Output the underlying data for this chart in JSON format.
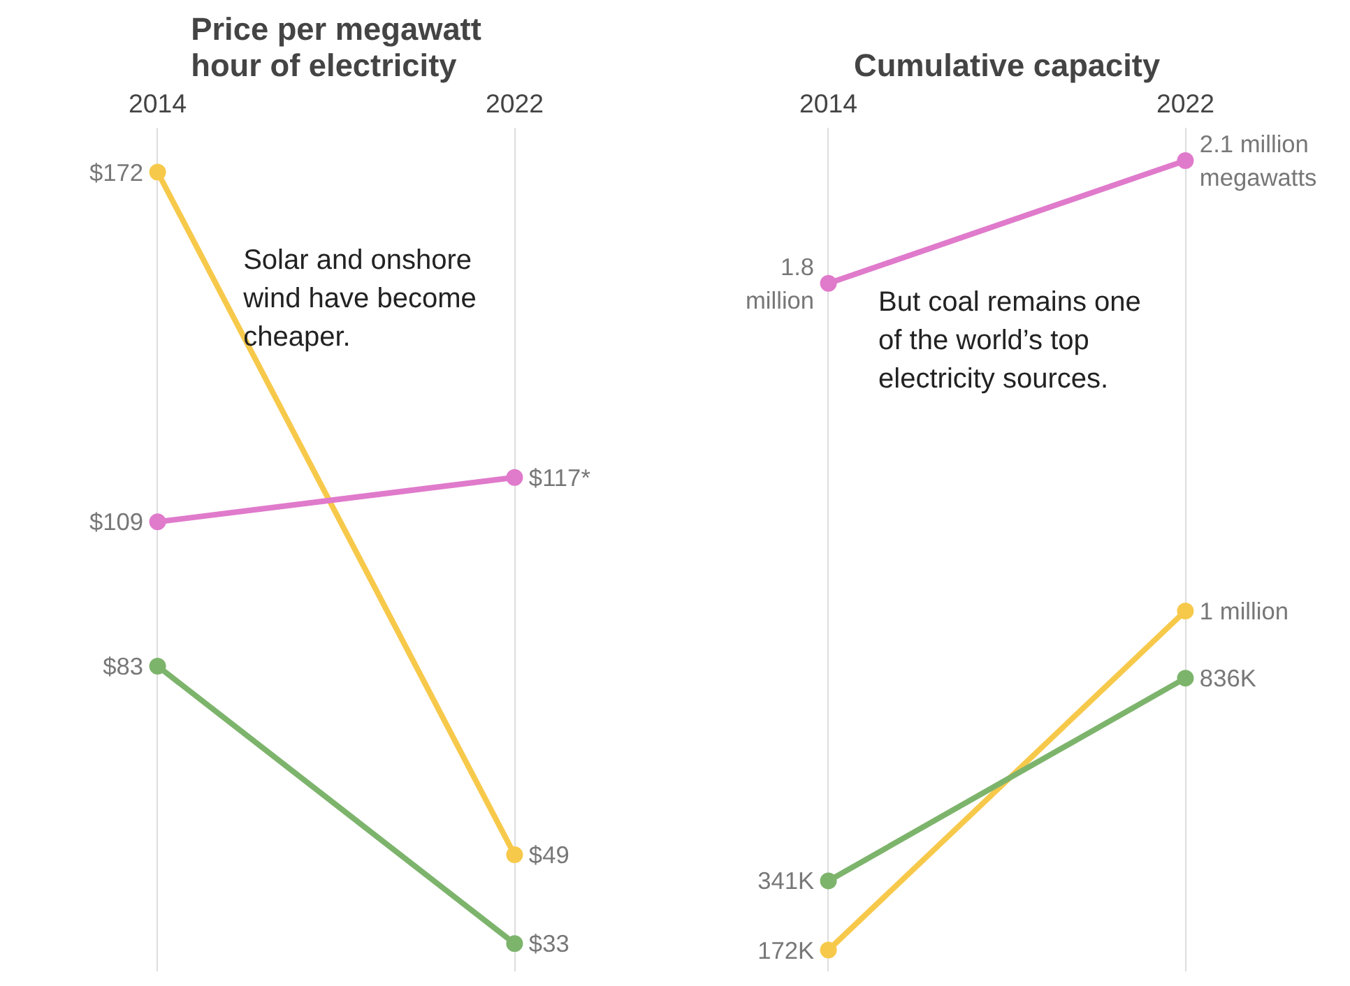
{
  "chart_data": [
    {
      "type": "line",
      "title": "Price per megawatt\nhour of electricity",
      "categories": [
        "2014",
        "2022"
      ],
      "ylim": [
        28,
        180
      ],
      "grid": "x",
      "marker": "circle",
      "tick_labels": "x",
      "annotations": [
        "Solar and onshore\nwind have become\ncheaper."
      ],
      "series": [
        {
          "color": "#f7c94b",
          "values": [
            172,
            49
          ],
          "value_labels": [
            "$172",
            "$49"
          ]
        },
        {
          "color": "#e07acb",
          "values": [
            109,
            117
          ],
          "value_labels": [
            "$109",
            "$117*"
          ]
        },
        {
          "color": "#7db46c",
          "values": [
            83,
            33
          ],
          "value_labels": [
            "$83",
            "$33"
          ]
        }
      ]
    },
    {
      "type": "line",
      "title": "Cumulative capacity",
      "categories": [
        "2014",
        "2022"
      ],
      "ylim": [
        120000,
        2180000
      ],
      "grid": "x",
      "marker": "circle",
      "tick_labels": "x",
      "annotations": [
        "But coal remains one\nof the world’s top\nelectricity sources."
      ],
      "series": [
        {
          "color": "#e07acb",
          "values": [
            1800000,
            2100000
          ],
          "value_labels": [
            "1.8\nmillion",
            "2.1 million\nmegawatts"
          ]
        },
        {
          "color": "#f7c94b",
          "values": [
            172000,
            1000000
          ],
          "value_labels": [
            "172K",
            "1 million"
          ]
        },
        {
          "color": "#7db46c",
          "values": [
            341000,
            836000
          ],
          "value_labels": [
            "341K",
            "836K"
          ]
        }
      ]
    }
  ]
}
